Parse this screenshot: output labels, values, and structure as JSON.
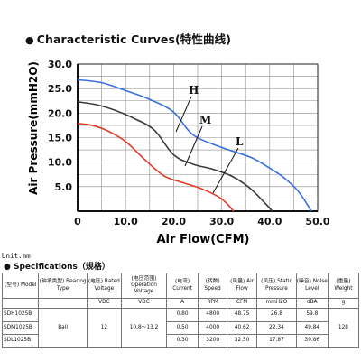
{
  "chart_data": {
    "type": "line",
    "title": "Characteristic Curves(特性曲线)",
    "xlabel": "Air Flow(CFM)",
    "ylabel": "Air Pressure(mmH2O)",
    "xlim": [
      0,
      50
    ],
    "ylim": [
      0,
      30
    ],
    "x_ticks": [
      "0",
      "10.0",
      "20.0",
      "30.0",
      "40.0",
      "50.0"
    ],
    "y_ticks": [
      "5.0",
      "10.0",
      "15.0",
      "20.0",
      "25.0",
      "30.0"
    ],
    "grid": true,
    "series": [
      {
        "name": "H",
        "color": "#3a6fe0",
        "x": [
          0,
          5,
          10,
          15,
          20,
          24,
          30,
          36,
          40,
          43,
          46,
          48.7
        ],
        "y": [
          26.8,
          26.2,
          24.6,
          22.8,
          20.2,
          15.6,
          13.0,
          11.0,
          8.8,
          6.8,
          4.0,
          0.0
        ]
      },
      {
        "name": "M",
        "color": "#3b3b3b",
        "x": [
          0,
          4,
          8,
          12,
          16,
          20,
          24,
          28,
          32,
          36,
          40.6
        ],
        "y": [
          22.3,
          21.7,
          20.5,
          18.8,
          16.5,
          11.5,
          9.6,
          8.6,
          7.2,
          4.6,
          0.0
        ]
      },
      {
        "name": "L",
        "color": "#e23a2a",
        "x": [
          0,
          3,
          6,
          10,
          14,
          18,
          22,
          26,
          30,
          32.5
        ],
        "y": [
          17.9,
          17.5,
          16.5,
          14.2,
          10.5,
          7.2,
          5.8,
          4.5,
          2.5,
          0.0
        ]
      }
    ]
  },
  "unit_note": "Unit:mm",
  "specs": {
    "title": "Specifications（规格）",
    "headers": [
      "(型号) Model",
      "(轴承类型) Bearing Type",
      "(电压) Rated Voltage",
      "(电压范围) Operation Voltage",
      "(电流) Current",
      "(转数) Speed",
      "(风量) Air Flow",
      "(风压) Static Pressure",
      "(噪音) Noise Level",
      "(重量) Weight"
    ],
    "units": [
      "",
      "",
      "VDC",
      "VDC",
      "A",
      "RPM",
      "CFM",
      "mmH2O",
      "dBA",
      "g"
    ],
    "bearing": "Ball",
    "rated_voltage": "12",
    "operation_voltage": "10.8～13.2",
    "weight": "128",
    "rows": [
      {
        "model": "SDH1025B",
        "current": "0.80",
        "speed": "4800",
        "air_flow": "48.75",
        "static_pressure": "26.8",
        "noise": "59.8"
      },
      {
        "model": "SDM1025B",
        "current": "0.50",
        "speed": "4000",
        "air_flow": "40.62",
        "static_pressure": "22.34",
        "noise": "49.84"
      },
      {
        "model": "SDL1025B",
        "current": "0.30",
        "speed": "3200",
        "air_flow": "32.50",
        "static_pressure": "17.87",
        "noise": "39.86"
      }
    ]
  }
}
